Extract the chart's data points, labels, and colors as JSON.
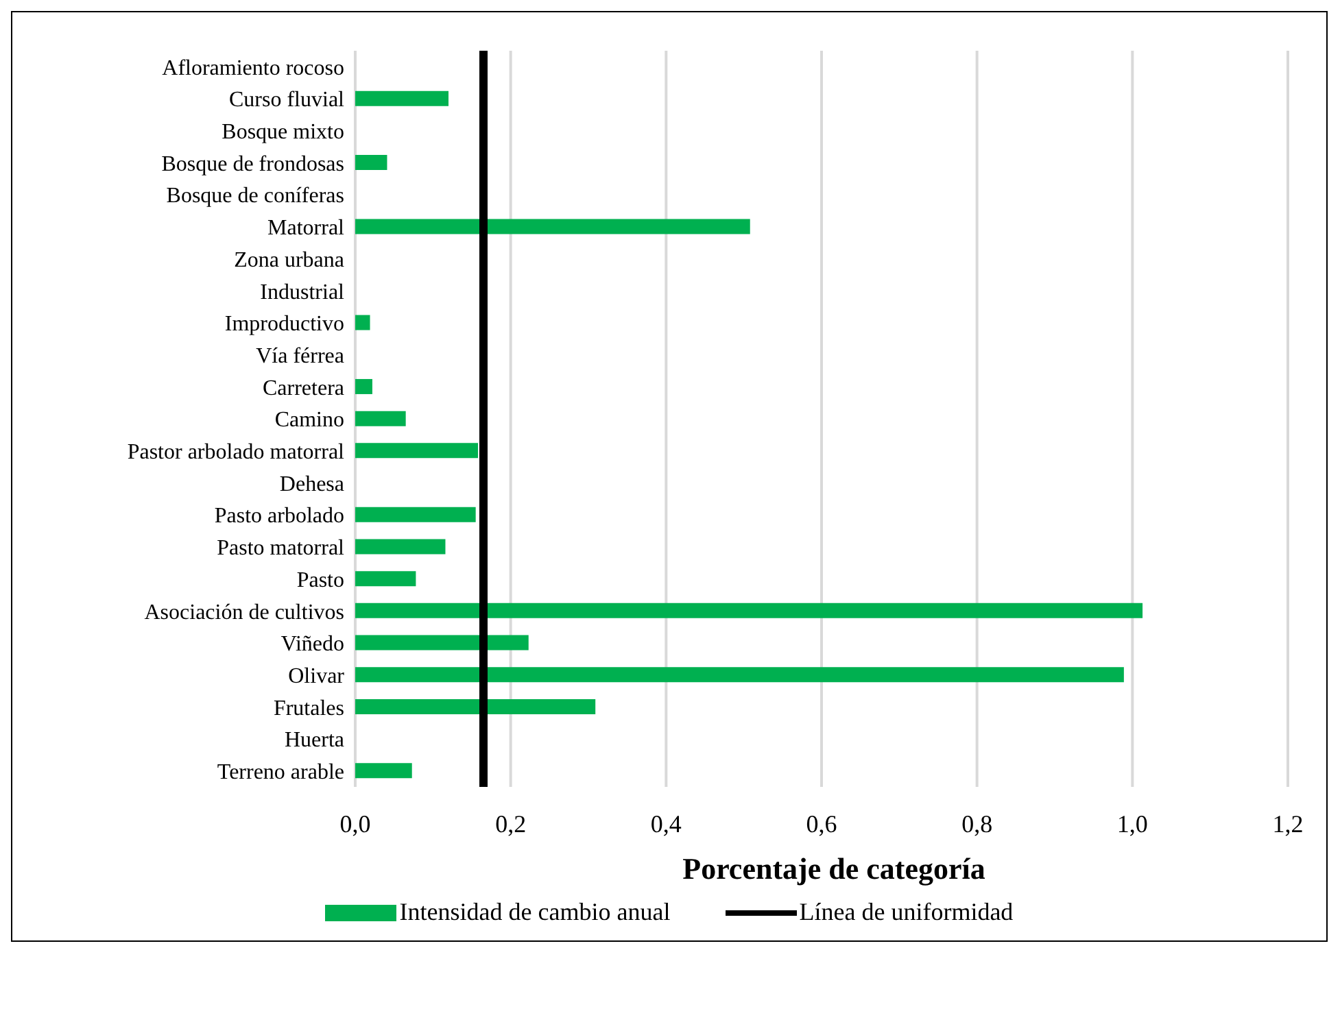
{
  "chart_data": {
    "type": "bar",
    "orientation": "horizontal",
    "xlabel": "Porcentaje de categoría",
    "categories": [
      "Afloramiento rocoso",
      "Curso fluvial",
      "Bosque mixto",
      "Bosque de frondosas",
      "Bosque de coníferas",
      "Matorral",
      "Zona urbana",
      "Industrial",
      "Improductivo",
      "Vía férrea",
      "Carretera",
      "Camino",
      "Pastor arbolado matorral",
      "Dehesa",
      "Pasto arbolado",
      "Pasto matorral",
      "Pasto",
      "Asociación de cultivos",
      "Viñedo",
      "Olivar",
      "Frutales",
      "Huerta",
      "Terreno arable"
    ],
    "series": [
      {
        "name": "Intensidad de cambio anual",
        "color": "#00b050",
        "values": [
          0,
          0.12,
          0,
          0.041,
          0,
          0.508,
          0,
          0,
          0.019,
          0,
          0.022,
          0.065,
          0.158,
          0,
          0.155,
          0.116,
          0.078,
          1.013,
          0.223,
          0.989,
          0.309,
          0,
          0.073
        ]
      }
    ],
    "ref_lines": [
      {
        "axis": "x",
        "value": 0.165,
        "label": "Línea de uniformidad",
        "color": "#000000",
        "line_style": "solid"
      }
    ],
    "xlim": [
      0,
      1.2
    ],
    "xticks": [
      {
        "value": 0,
        "label": "0,0"
      },
      {
        "value": 0.2,
        "label": "0,2"
      },
      {
        "value": 0.4,
        "label": "0,4"
      },
      {
        "value": 0.6,
        "label": "0,6"
      },
      {
        "value": 0.8,
        "label": "0,8"
      },
      {
        "value": 1,
        "label": "1,0"
      },
      {
        "value": 1.2,
        "label": "1,2"
      }
    ],
    "grid": "x",
    "legend": "bottom"
  }
}
